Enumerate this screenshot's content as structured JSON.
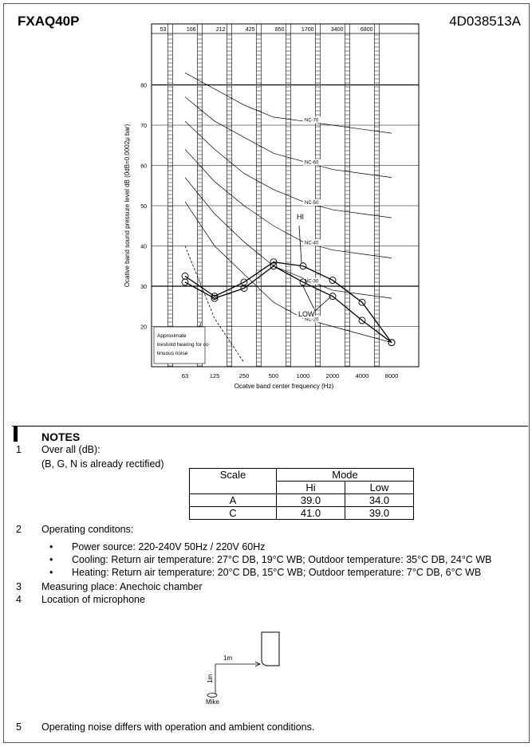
{
  "header": {
    "title": "FXAQ40P",
    "code": "4D038513A"
  },
  "chart_data": {
    "type": "line",
    "y_label": "Ocative band sound pressure level  dB (0dB=0.0002μ bar)",
    "x_label": "Ocatve band center frequency (Hz)",
    "categories": [
      "63",
      "125",
      "250",
      "500",
      "1000",
      "2000",
      "4000",
      "8000"
    ],
    "band_edges": [
      "53",
      "106",
      "212",
      "425",
      "850",
      "1700",
      "3400",
      "6800"
    ],
    "ylim": [
      10,
      90
    ],
    "yticks": [
      20,
      30,
      40,
      50,
      60,
      70,
      80
    ],
    "grid": true,
    "series": [
      {
        "name": "HI",
        "color": "#000000",
        "values": [
          32.5,
          27.5,
          31,
          36,
          35,
          31.5,
          26,
          16
        ]
      },
      {
        "name": "LOW",
        "color": "#000000",
        "values": [
          31,
          27,
          29.5,
          35,
          31,
          27.5,
          21.5,
          16
        ]
      }
    ],
    "nc_curves": [
      {
        "name": "NC-70",
        "values": [
          83,
          79,
          75,
          72,
          71,
          70,
          69,
          68
        ]
      },
      {
        "name": "NC-60",
        "values": [
          77,
          71,
          67,
          63,
          61,
          59,
          58,
          57
        ]
      },
      {
        "name": "NC-50",
        "values": [
          71,
          64,
          58,
          54,
          51,
          49,
          48,
          47
        ]
      },
      {
        "name": "NC-40",
        "values": [
          64,
          56,
          50,
          45,
          41,
          39,
          38,
          37
        ]
      },
      {
        "name": "NC-30",
        "values": [
          57,
          48,
          41,
          35,
          32,
          29,
          28,
          27
        ]
      },
      {
        "name": "NC-20",
        "values": [
          51,
          40,
          33,
          26,
          22,
          20,
          18,
          16
        ]
      }
    ],
    "threshold": {
      "name": "Approximate treshold hearing for continuous noise",
      "values": [
        40,
        22,
        11,
        null,
        null,
        null,
        null,
        null
      ]
    }
  },
  "notes": {
    "heading": "NOTES",
    "items": [
      {
        "number": "1",
        "lines": [
          "Over all (dB):",
          "(B, G, N is already rectified)"
        ]
      },
      {
        "number": "2",
        "lines": [
          "Operating conditons:"
        ],
        "bullets": [
          "Power source: 220-240V 50Hz / 220V 60Hz",
          "Cooling: Return air temperature: 27°C DB, 19°C WB; Outdoor temperature: 35°C DB, 24°C WB",
          "Heating: Return air temperature: 20°C DB, 15°C WB; Outdoor temperature: 7°C DB, 6°C WB"
        ]
      },
      {
        "number": "3",
        "lines": [
          "Measuring place: Anechoic chamber"
        ]
      },
      {
        "number": "4",
        "lines": [
          "Location of microphone"
        ]
      },
      {
        "number": "5",
        "lines": [
          "Operating noise differs with operation and ambient conditions."
        ]
      }
    ],
    "bullet": "•",
    "mic_diagram": {
      "horizontal": "1m",
      "vertical": "1m",
      "mike": "Mike"
    }
  },
  "table": {
    "header": [
      "Scale",
      "Mode"
    ],
    "subheader": [
      "Hi",
      "Low"
    ],
    "rows": [
      [
        "A",
        "39.0",
        "34.0"
      ],
      [
        "C",
        "41.0",
        "39.0"
      ]
    ]
  }
}
